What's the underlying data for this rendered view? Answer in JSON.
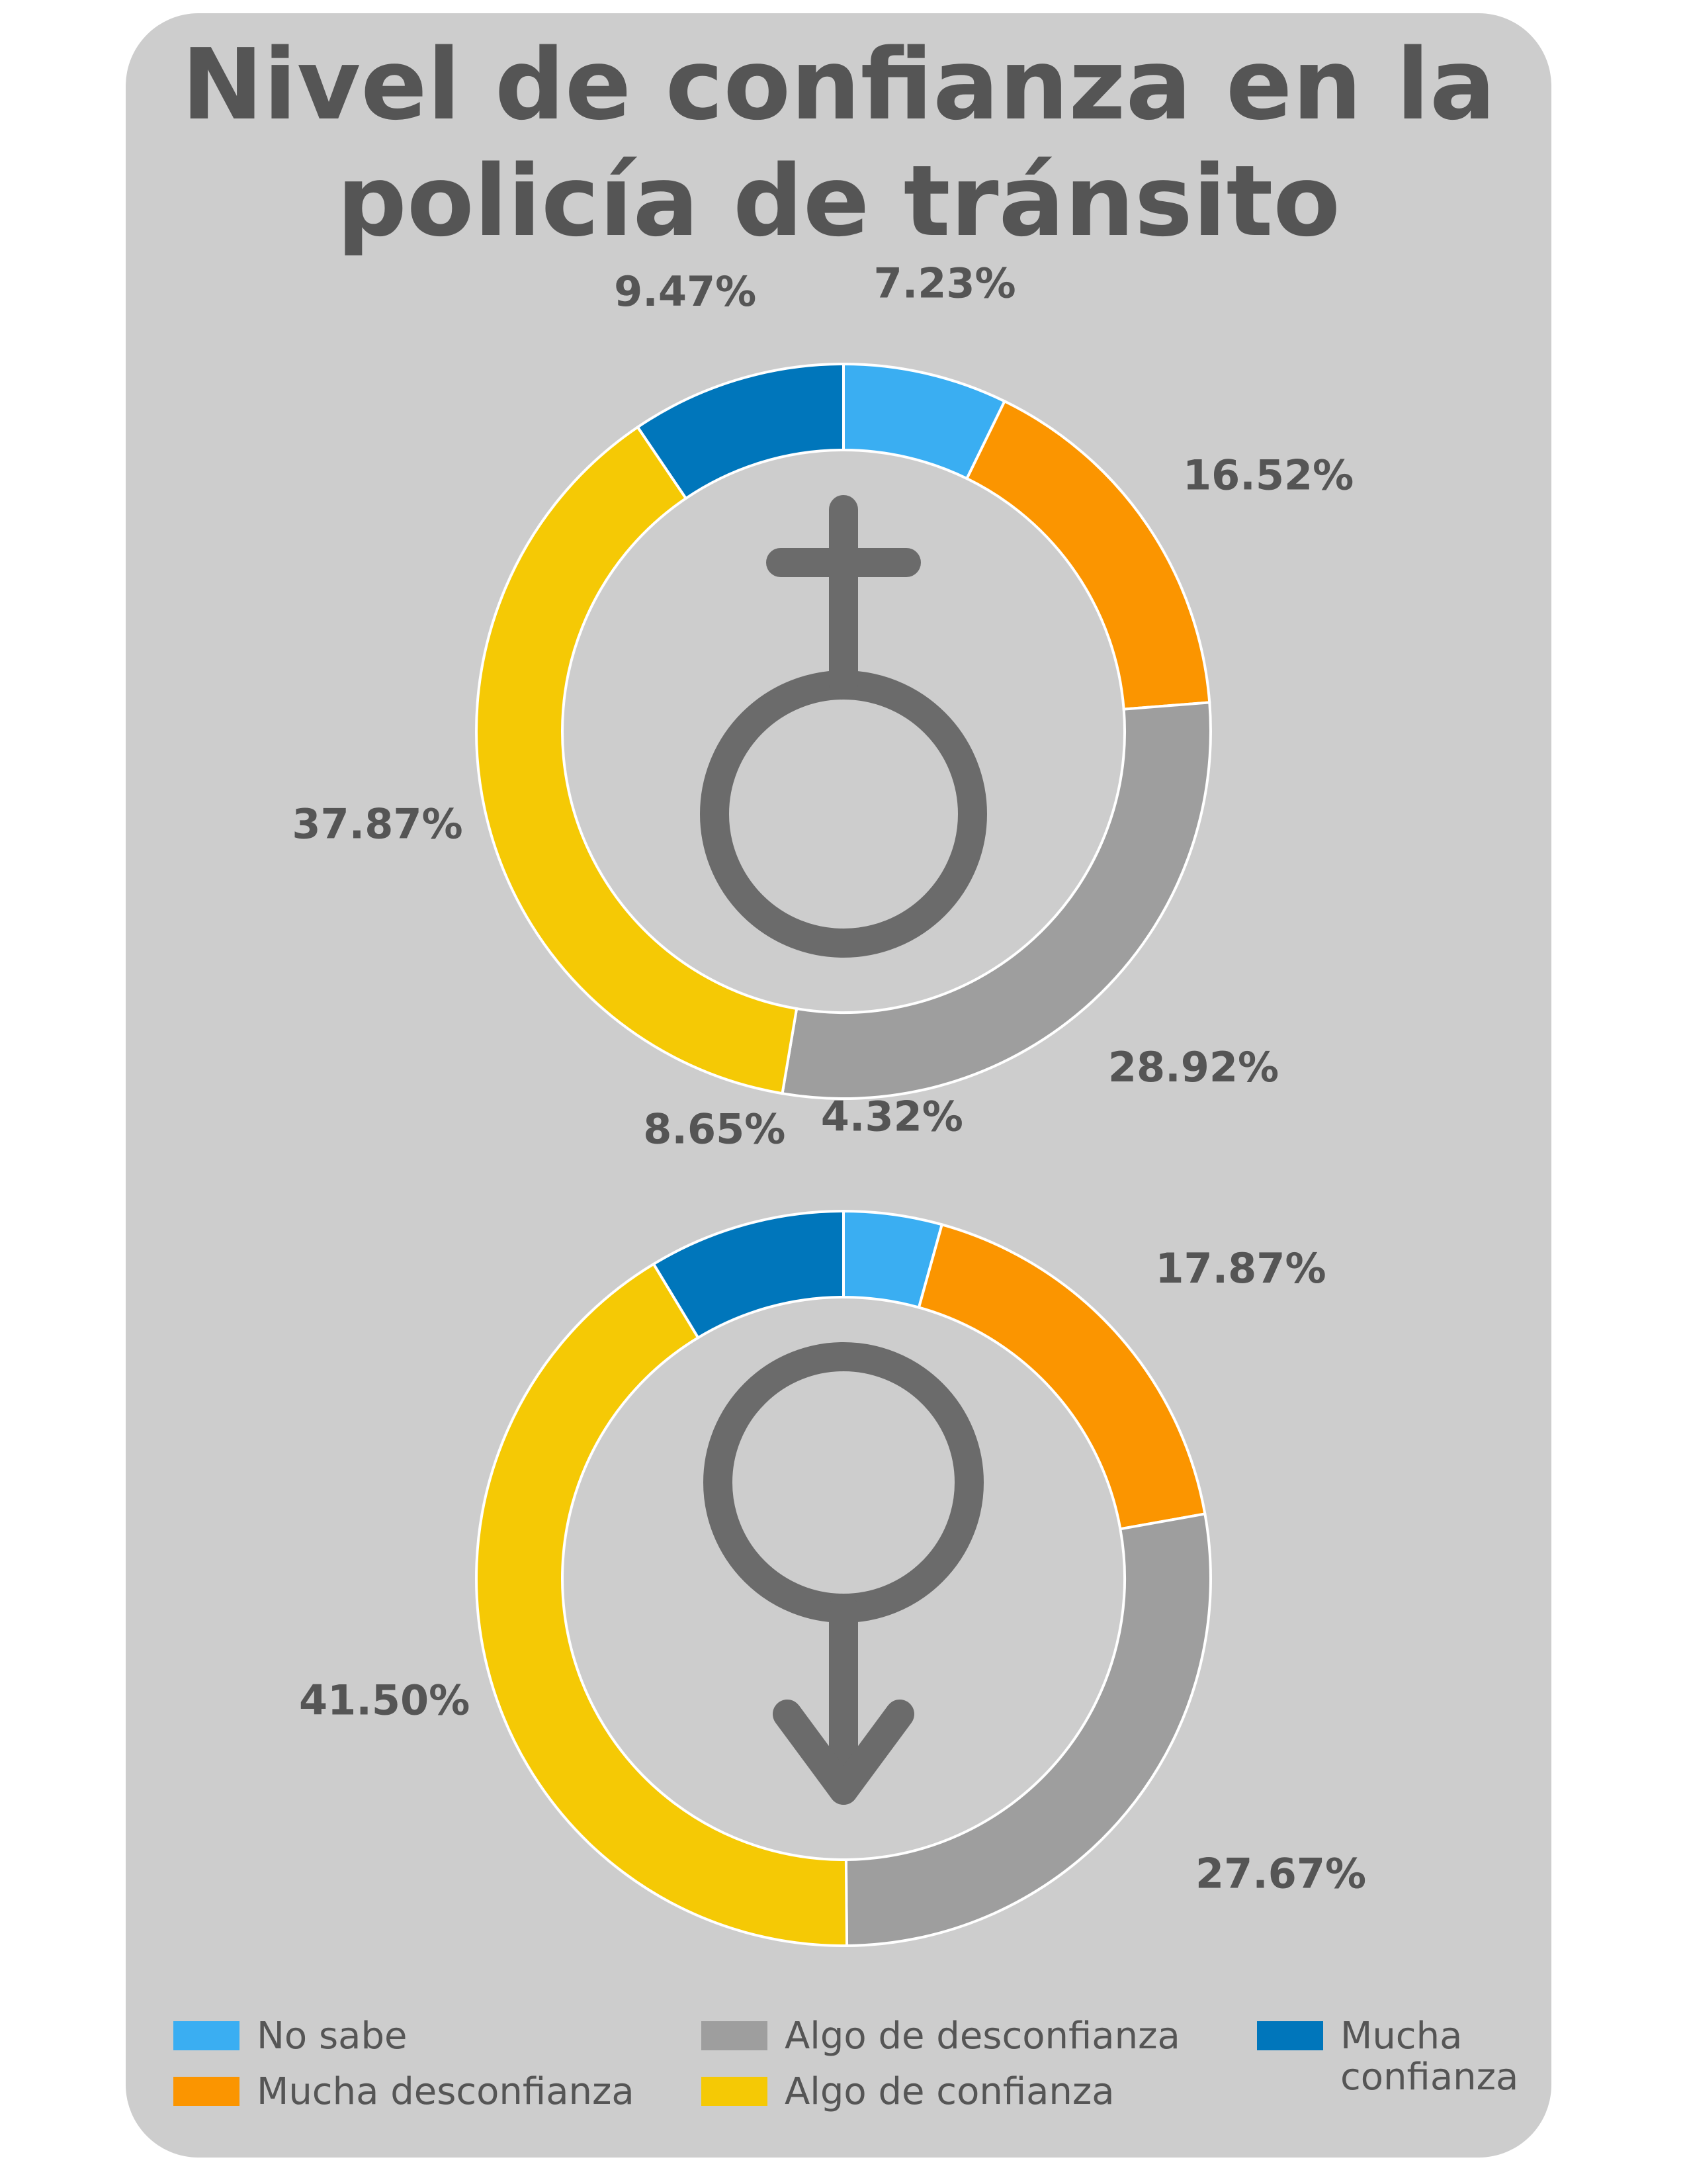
{
  "title_lines": [
    "Nivel de confianza en la",
    "policía de tránsito"
  ],
  "legend": [
    {
      "label": "No sabe",
      "color": "#3aaef2"
    },
    {
      "label": "Mucha desconfianza",
      "color": "#fb9500"
    },
    {
      "label": "Algo de desconfianza",
      "color": "#9e9e9e"
    },
    {
      "label": "Algo de confianza",
      "color": "#f5c905"
    },
    {
      "label": "Mucha confianza",
      "color": "#0076bb"
    }
  ],
  "chart_data": [
    {
      "type": "pie",
      "variant": "donut",
      "center_icon": "female-symbol-icon",
      "categories": [
        "No sabe",
        "Mucha desconfianza",
        "Algo de desconfianza",
        "Algo de confianza",
        "Mucha confianza"
      ],
      "values": [
        7.23,
        16.52,
        28.92,
        37.87,
        9.47
      ],
      "labels": [
        "7.23%",
        "16.52%",
        "28.92%",
        "37.87%",
        "9.47%"
      ]
    },
    {
      "type": "pie",
      "variant": "donut",
      "center_icon": "male-symbol-icon",
      "categories": [
        "No sabe",
        "Mucha desconfianza",
        "Algo de desconfianza",
        "Algo de confianza",
        "Mucha confianza"
      ],
      "values": [
        4.32,
        17.87,
        27.67,
        41.5,
        8.65
      ],
      "labels": [
        "4.32%",
        "17.87%",
        "27.67%",
        "41.50%",
        "8.65%"
      ]
    }
  ]
}
